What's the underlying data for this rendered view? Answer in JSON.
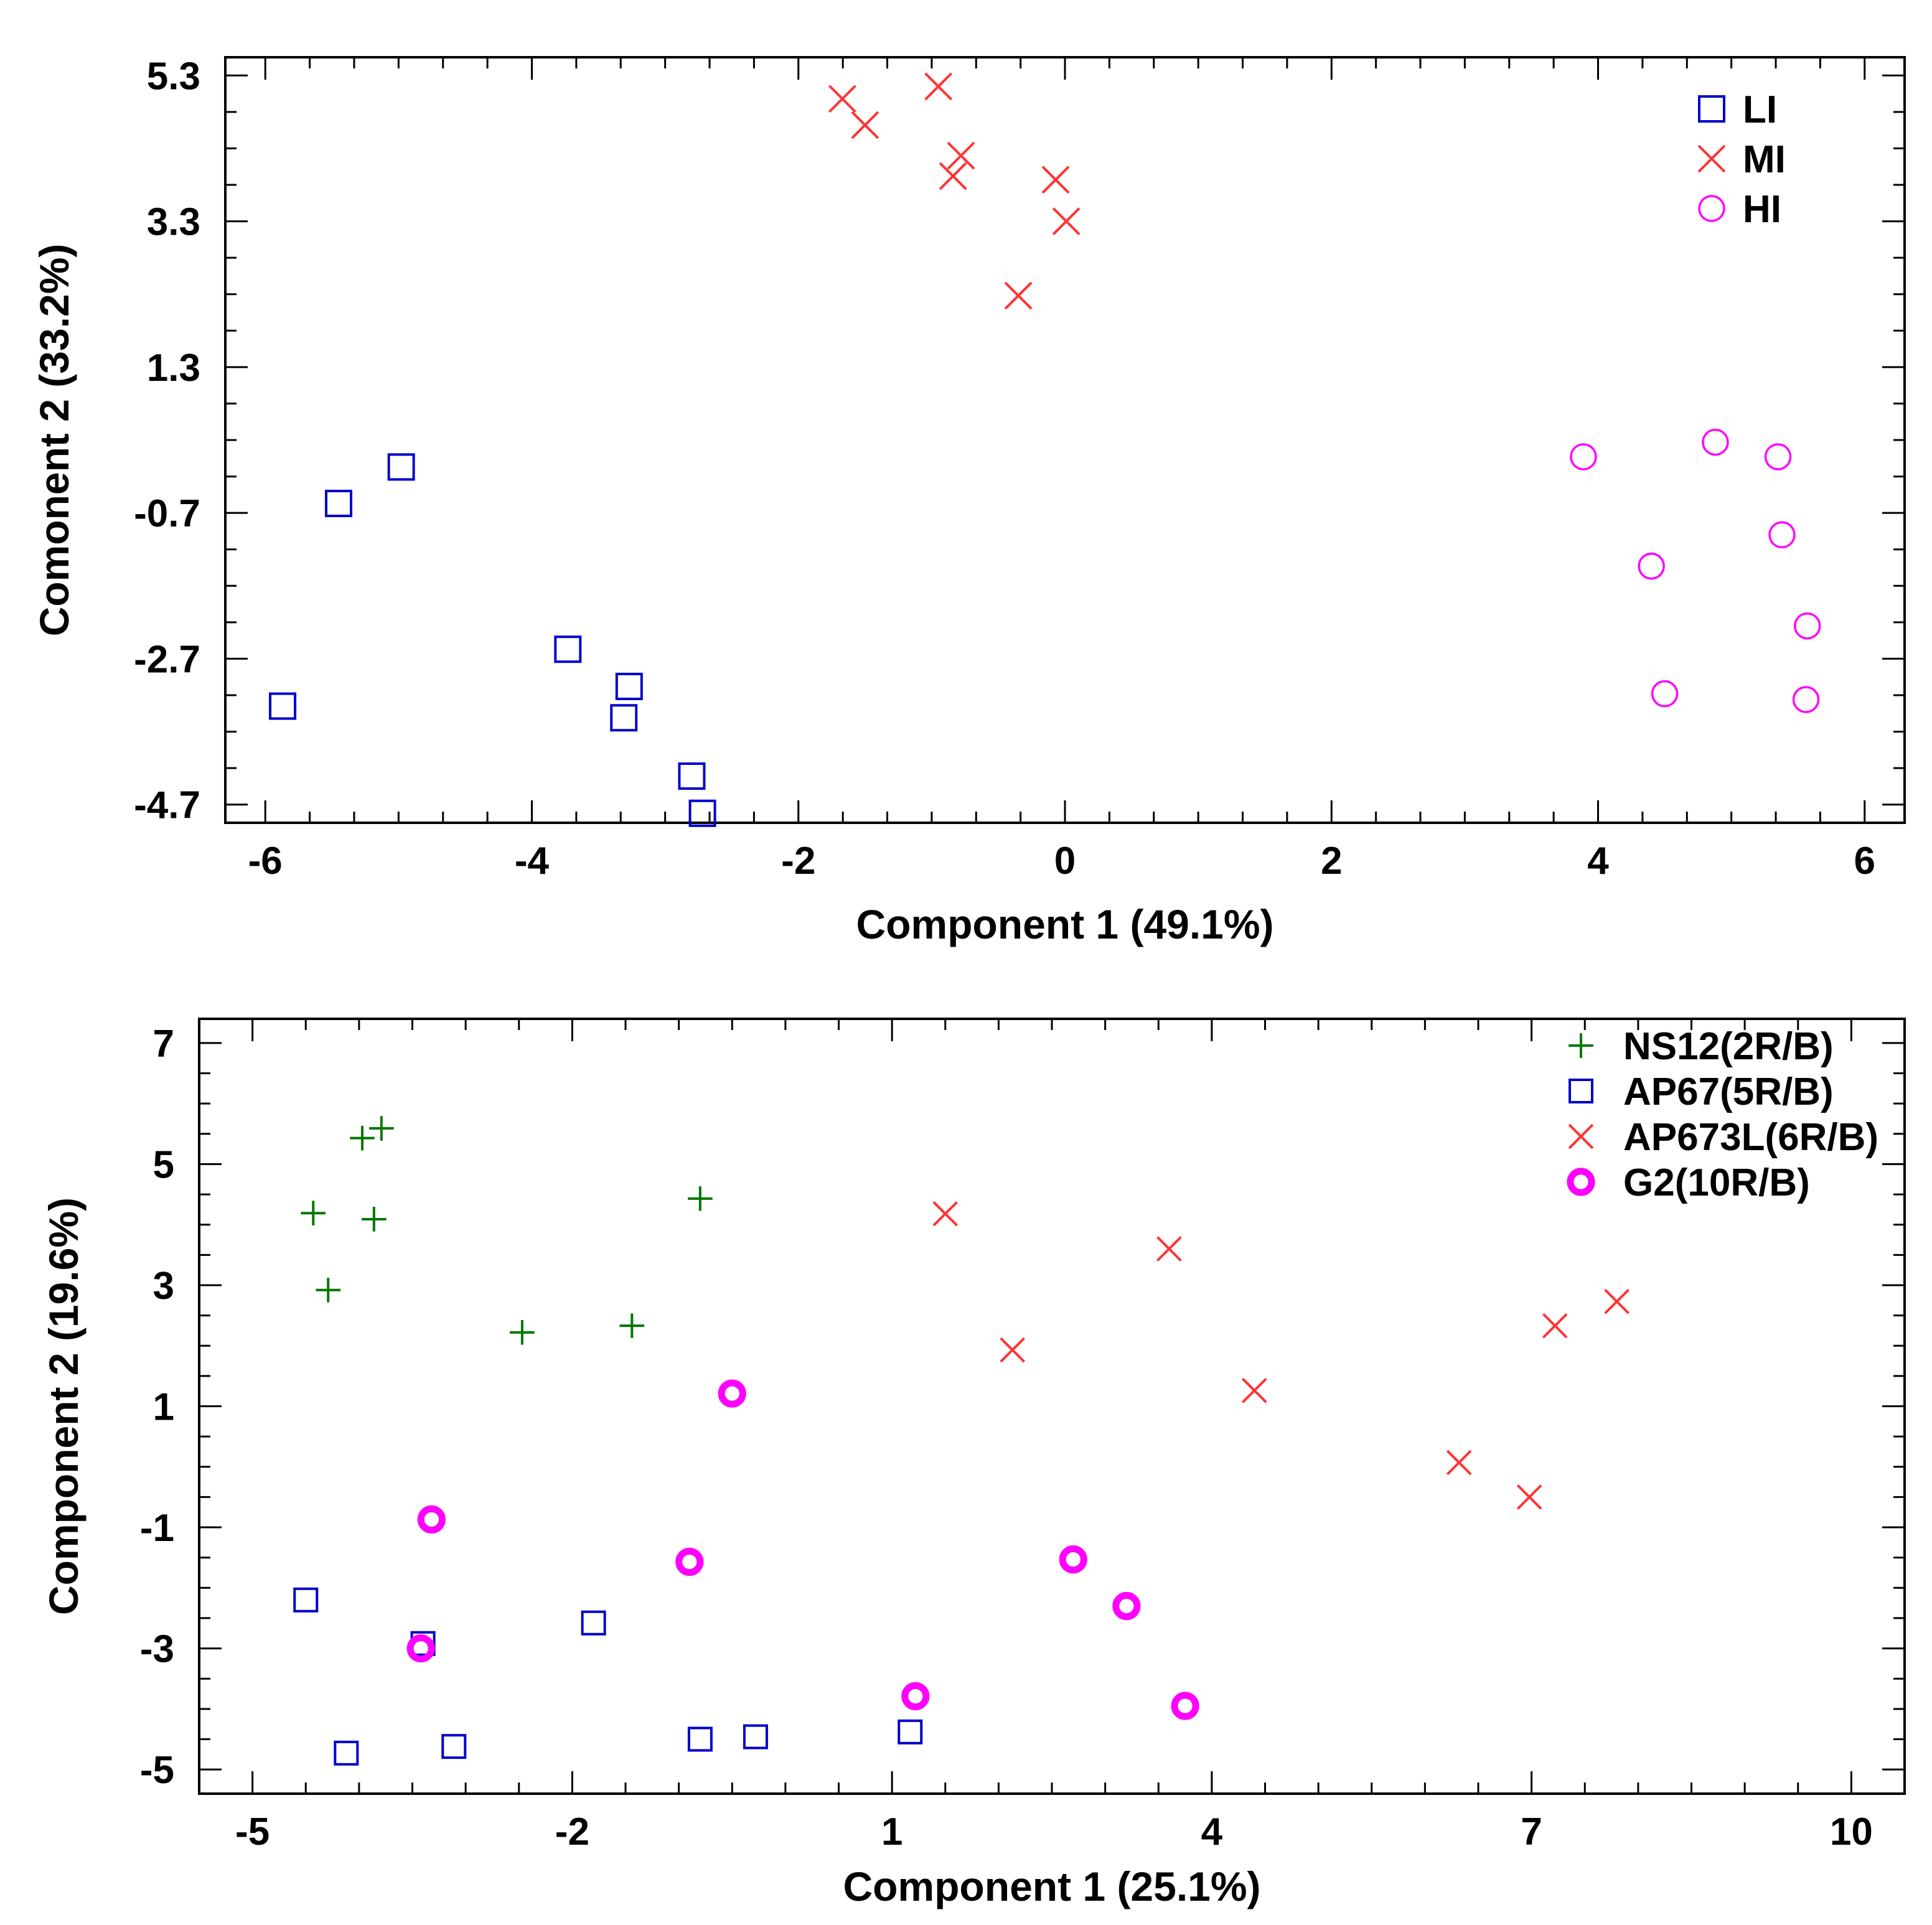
{
  "chart_data": [
    {
      "type": "scatter",
      "title": "",
      "xlabel": "Component 1 (49.1%)",
      "ylabel": "Comonent 2 (33.2%)",
      "xlim": [
        -6.3,
        6.3
      ],
      "ylim": [
        -4.95,
        5.55
      ],
      "xticks": [
        -6,
        -4,
        -2,
        0,
        2,
        4,
        6
      ],
      "yticks": [
        5.3,
        3.3,
        1.3,
        -0.7,
        -2.7,
        -4.7
      ],
      "ytick_labels": [
        "5.3",
        "3.3",
        "1.3",
        "-0.7",
        "-2.7",
        "-4.7"
      ],
      "grid": false,
      "legend": "top-right",
      "series": [
        {
          "name": "LI",
          "marker": "square",
          "color": "#0000cc",
          "x": [
            -5.45,
            -4.98,
            -5.87,
            -3.73,
            -3.27,
            -3.31,
            -2.8,
            -2.72
          ],
          "y": [
            -0.57,
            -0.07,
            -3.35,
            -2.57,
            -3.08,
            -3.51,
            -4.31,
            -4.82
          ]
        },
        {
          "name": "MI",
          "marker": "x",
          "color": "#ff3333",
          "x": [
            -1.67,
            -1.5,
            -0.95,
            -0.78,
            -0.84,
            -0.07,
            0.01,
            -0.35
          ],
          "y": [
            4.98,
            4.62,
            5.15,
            4.2,
            3.92,
            3.87,
            3.3,
            2.28
          ]
        },
        {
          "name": "HI",
          "marker": "circle",
          "color": "#ff00ff",
          "x": [
            3.89,
            4.88,
            5.35,
            5.38,
            4.4,
            5.57,
            4.5,
            5.56
          ],
          "y": [
            0.07,
            0.27,
            0.07,
            -1.0,
            -1.43,
            -2.25,
            -3.18,
            -3.26
          ]
        }
      ]
    },
    {
      "type": "scatter",
      "title": "",
      "xlabel": "Component 1 (25.1%)",
      "ylabel": "Component 2 (19.6%)",
      "xlim": [
        -5.5,
        10.5
      ],
      "ylim": [
        -5.4,
        7.4
      ],
      "xticks": [
        -5,
        -2,
        1,
        4,
        7,
        10
      ],
      "yticks": [
        7,
        5,
        3,
        1,
        -1,
        -3,
        -5
      ],
      "grid": false,
      "legend": "top-right",
      "series": [
        {
          "name": "NS12(2R/B)",
          "marker": "plus",
          "color": "#007700",
          "x": [
            -3.97,
            -3.79,
            -4.43,
            -3.86,
            -0.8,
            -4.29,
            -2.47,
            -1.44
          ],
          "y": [
            5.43,
            5.59,
            4.19,
            4.09,
            4.43,
            2.92,
            2.22,
            2.33
          ]
        },
        {
          "name": "AP67(5R/B)",
          "marker": "square",
          "color": "#0000cc",
          "x": [
            -4.5,
            -3.4,
            -1.8,
            -4.12,
            -3.11,
            -0.8,
            -0.28,
            1.17
          ],
          "y": [
            -2.2,
            -2.92,
            -2.58,
            -4.73,
            -4.62,
            -4.5,
            -4.46,
            -4.38
          ]
        },
        {
          "name": "AP673L(6R/B)",
          "marker": "x",
          "color": "#ff3333",
          "x": [
            1.5,
            3.6,
            2.13,
            4.4,
            7.22,
            7.8,
            6.32,
            6.98
          ],
          "y": [
            4.18,
            3.6,
            1.93,
            1.26,
            2.33,
            2.73,
            0.07,
            -0.5
          ]
        },
        {
          "name": "G2(10R/B)",
          "marker": "ring",
          "color": "#ff00ff",
          "x": [
            -0.5,
            -3.32,
            -0.9,
            2.7,
            3.2,
            -3.42,
            1.22,
            3.75
          ],
          "y": [
            1.21,
            -0.87,
            -1.57,
            -1.53,
            -2.3,
            -3.0,
            -3.79,
            -3.95
          ]
        }
      ]
    }
  ]
}
